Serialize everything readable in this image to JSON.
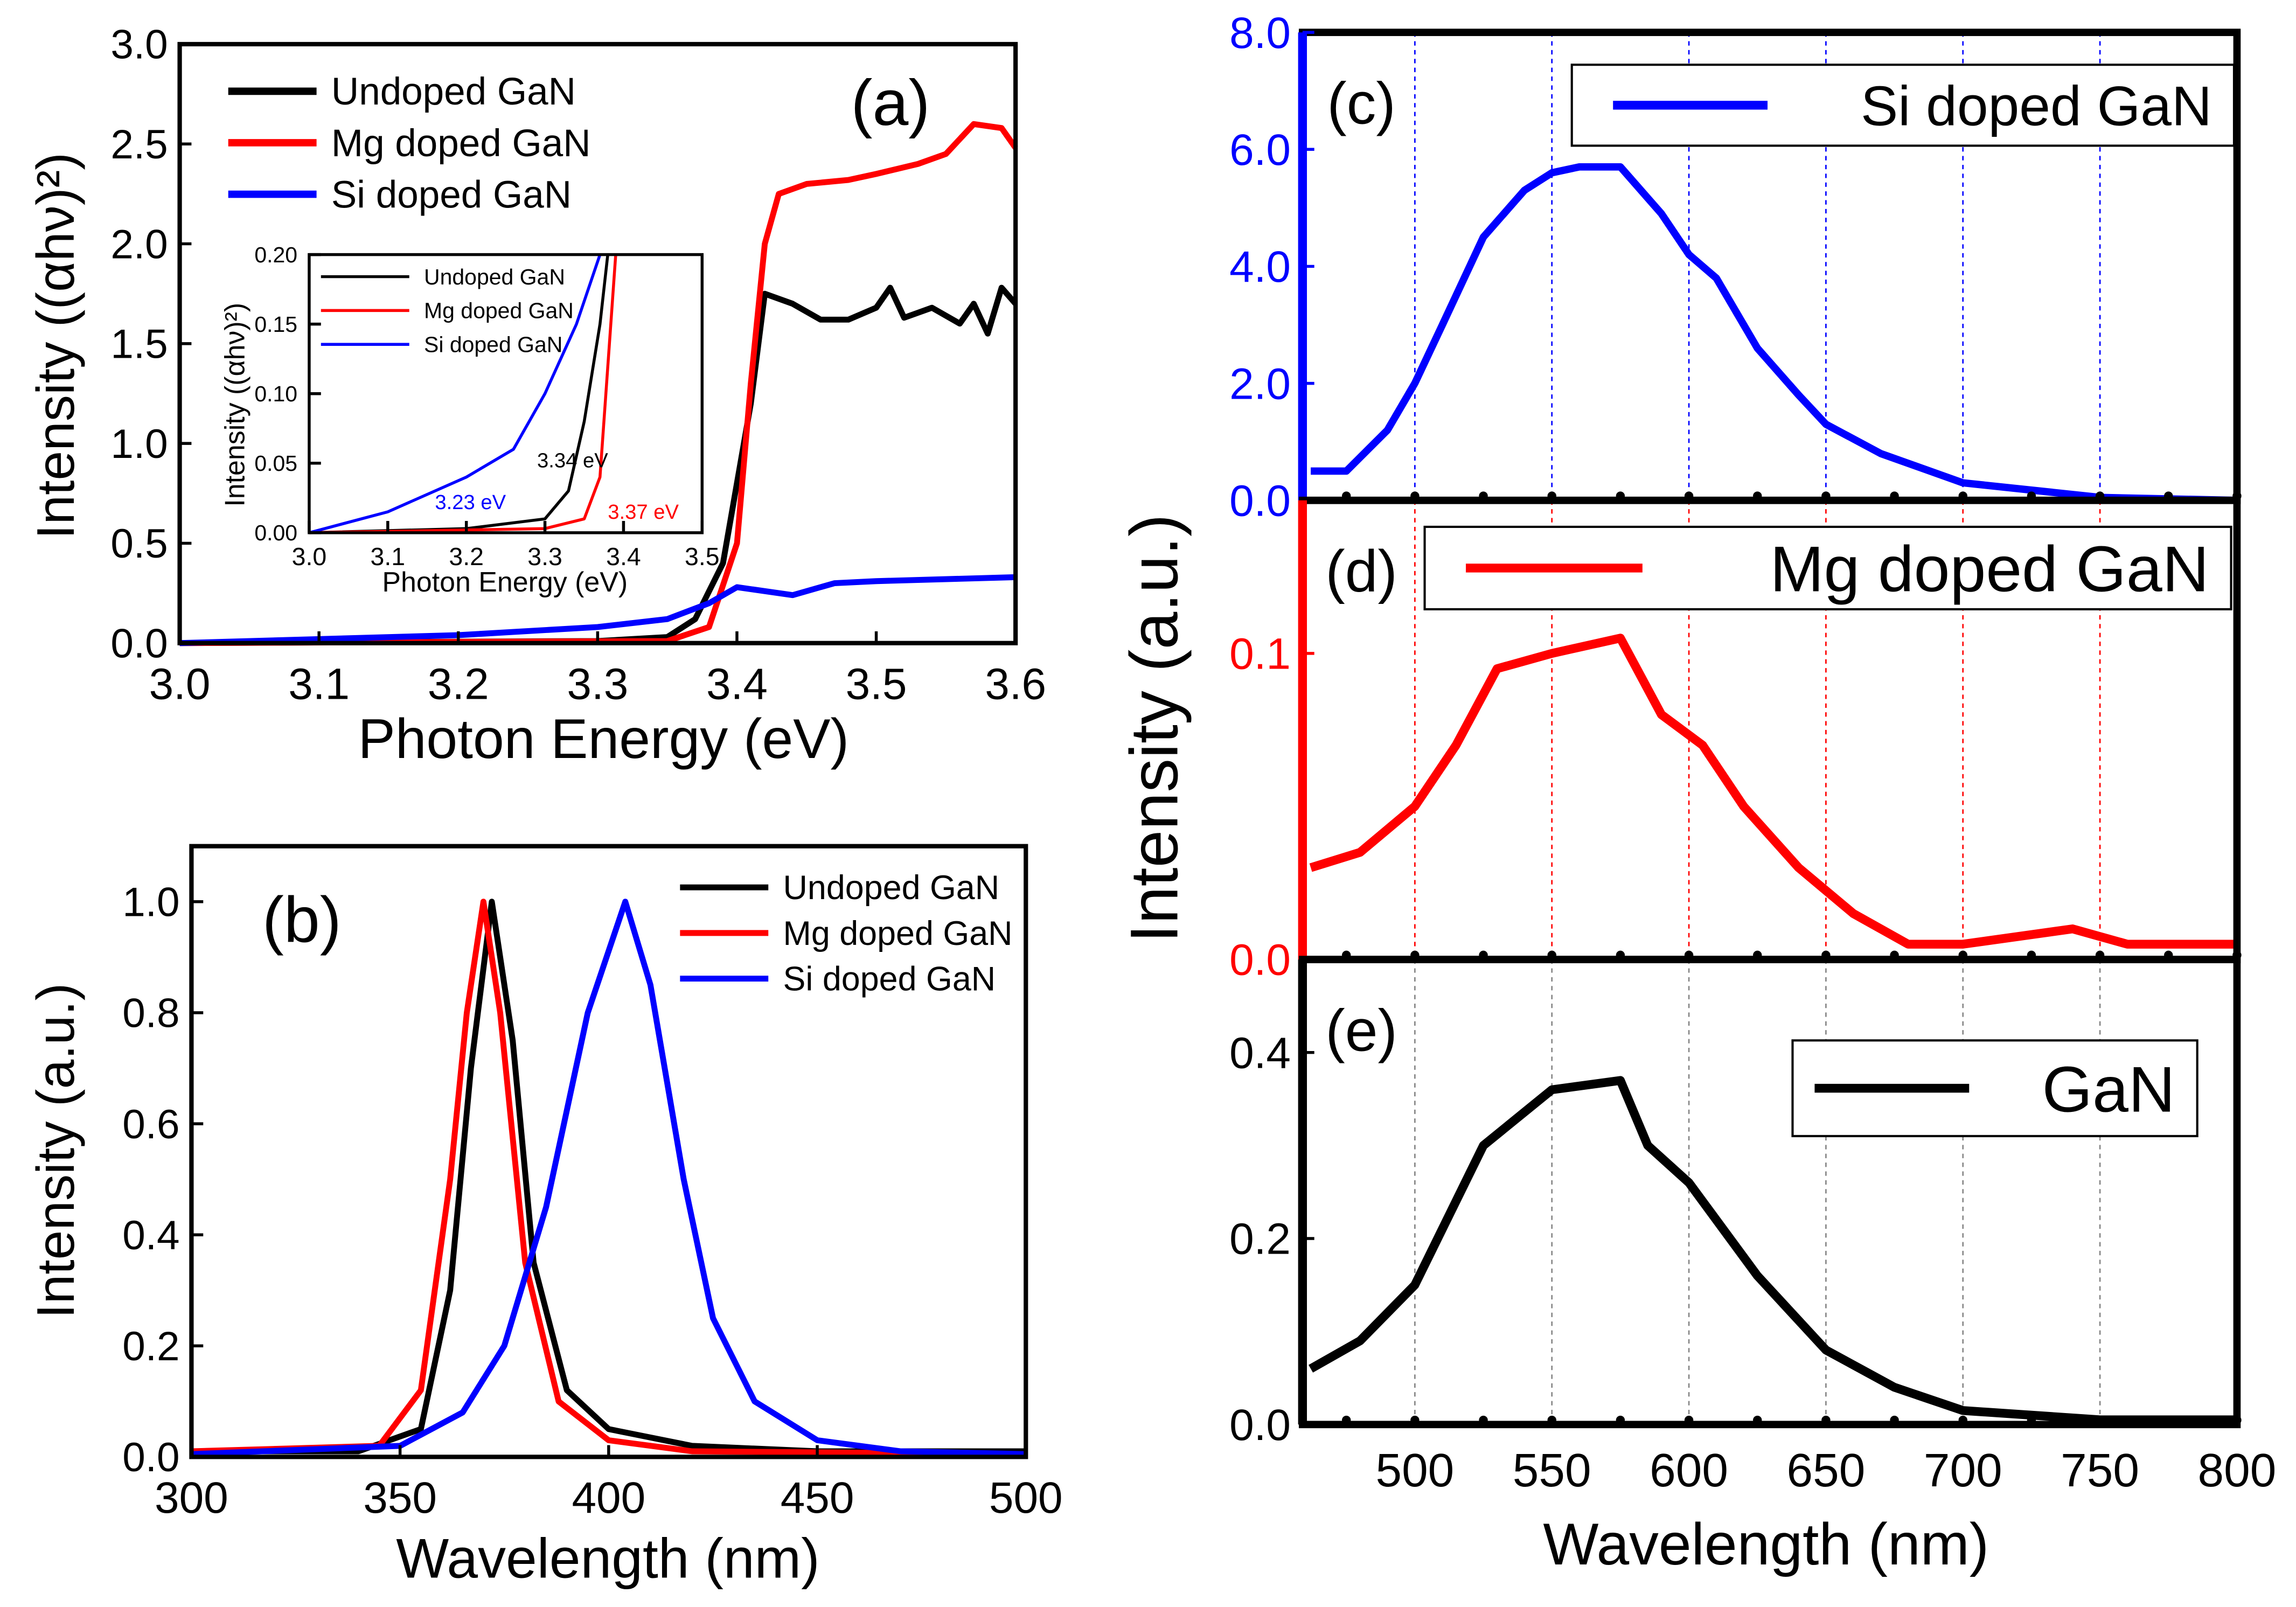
{
  "chart_data": [
    {
      "id": "a",
      "type": "line",
      "panel_label": "(a)",
      "xlabel": "Photon Energy (eV)",
      "ylabel": "Intensity ((αhν)²)",
      "xlim": [
        3.0,
        3.6
      ],
      "ylim": [
        0,
        3.0
      ],
      "xticks": [
        "3.0",
        "3.1",
        "3.2",
        "3.3",
        "3.4",
        "3.5",
        "3.6"
      ],
      "yticks": [
        "0.0",
        "0.5",
        "1.0",
        "1.5",
        "2.0",
        "2.5",
        "3.0"
      ],
      "legend": "top-left",
      "grid": false,
      "series": [
        {
          "name": "Undoped GaN",
          "color": "#000000",
          "points": [
            [
              3.0,
              0
            ],
            [
              3.3,
              0.01
            ],
            [
              3.35,
              0.03
            ],
            [
              3.37,
              0.12
            ],
            [
              3.39,
              0.4
            ],
            [
              3.41,
              1.2
            ],
            [
              3.42,
              1.75
            ],
            [
              3.44,
              1.7
            ],
            [
              3.46,
              1.62
            ],
            [
              3.48,
              1.62
            ],
            [
              3.5,
              1.68
            ],
            [
              3.51,
              1.78
            ],
            [
              3.52,
              1.63
            ],
            [
              3.54,
              1.68
            ],
            [
              3.56,
              1.6
            ],
            [
              3.57,
              1.7
            ],
            [
              3.58,
              1.55
            ],
            [
              3.59,
              1.78
            ],
            [
              3.6,
              1.7
            ]
          ]
        },
        {
          "name": "Mg doped GaN",
          "color": "#ff0000",
          "points": [
            [
              3.0,
              0
            ],
            [
              3.35,
              0.01
            ],
            [
              3.38,
              0.08
            ],
            [
              3.4,
              0.5
            ],
            [
              3.41,
              1.3
            ],
            [
              3.42,
              2.0
            ],
            [
              3.43,
              2.25
            ],
            [
              3.45,
              2.3
            ],
            [
              3.48,
              2.32
            ],
            [
              3.5,
              2.35
            ],
            [
              3.53,
              2.4
            ],
            [
              3.55,
              2.45
            ],
            [
              3.57,
              2.6
            ],
            [
              3.59,
              2.58
            ],
            [
              3.6,
              2.48
            ]
          ]
        },
        {
          "name": "Si doped GaN",
          "color": "#0000ff",
          "points": [
            [
              3.0,
              0
            ],
            [
              3.1,
              0.02
            ],
            [
              3.2,
              0.04
            ],
            [
              3.3,
              0.08
            ],
            [
              3.35,
              0.12
            ],
            [
              3.38,
              0.2
            ],
            [
              3.4,
              0.28
            ],
            [
              3.42,
              0.26
            ],
            [
              3.44,
              0.24
            ],
            [
              3.47,
              0.3
            ],
            [
              3.5,
              0.31
            ],
            [
              3.6,
              0.33
            ]
          ]
        }
      ],
      "inset": {
        "xlabel": "Photon Energy (eV)",
        "ylabel": "Intensity ((αhν)²)",
        "xlim": [
          3.0,
          3.5
        ],
        "ylim": [
          0,
          0.2
        ],
        "xticks": [
          "3.0",
          "3.1",
          "3.2",
          "3.3",
          "3.4",
          "3.5"
        ],
        "yticks": [
          "0.00",
          "0.05",
          "0.10",
          "0.15",
          "0.20"
        ],
        "series": [
          {
            "name": "Undoped GaN",
            "color": "#000000",
            "points": [
              [
                3.0,
                0
              ],
              [
                3.2,
                0.003
              ],
              [
                3.3,
                0.01
              ],
              [
                3.33,
                0.03
              ],
              [
                3.35,
                0.08
              ],
              [
                3.37,
                0.15
              ],
              [
                3.38,
                0.2
              ]
            ]
          },
          {
            "name": "Mg doped GaN",
            "color": "#ff0000",
            "points": [
              [
                3.0,
                0
              ],
              [
                3.3,
                0.003
              ],
              [
                3.35,
                0.01
              ],
              [
                3.37,
                0.04
              ],
              [
                3.39,
                0.2
              ]
            ]
          },
          {
            "name": "Si doped GaN",
            "color": "#0000ff",
            "points": [
              [
                3.0,
                0
              ],
              [
                3.1,
                0.015
              ],
              [
                3.2,
                0.04
              ],
              [
                3.26,
                0.06
              ],
              [
                3.3,
                0.1
              ],
              [
                3.34,
                0.15
              ],
              [
                3.37,
                0.2
              ]
            ]
          }
        ],
        "annotations": [
          {
            "text": "3.23 eV",
            "color": "#0000ff",
            "at": [
              3.16,
              0.017
            ]
          },
          {
            "text": "3.34 eV",
            "color": "#000000",
            "at": [
              3.29,
              0.047
            ]
          },
          {
            "text": "3.37 eV",
            "color": "#ff0000",
            "at": [
              3.38,
              0.01
            ]
          }
        ]
      }
    },
    {
      "id": "b",
      "type": "line",
      "panel_label": "(b)",
      "xlabel": "Wavelength (nm)",
      "ylabel": "Intensity (a.u.)",
      "xlim": [
        300,
        500
      ],
      "ylim": [
        0,
        1.1
      ],
      "xticks": [
        "300",
        "350",
        "400",
        "450",
        "500"
      ],
      "yticks": [
        "0.0",
        "0.2",
        "0.4",
        "0.6",
        "0.8",
        "1.0"
      ],
      "legend": "top-right",
      "grid": false,
      "series": [
        {
          "name": "Undoped GaN",
          "color": "#000000",
          "points": [
            [
              300,
              0.01
            ],
            [
              340,
              0.01
            ],
            [
              355,
              0.05
            ],
            [
              362,
              0.3
            ],
            [
              367,
              0.7
            ],
            [
              372,
              1.0
            ],
            [
              377,
              0.75
            ],
            [
              382,
              0.35
            ],
            [
              390,
              0.12
            ],
            [
              400,
              0.05
            ],
            [
              420,
              0.02
            ],
            [
              450,
              0.01
            ],
            [
              500,
              0.01
            ]
          ]
        },
        {
          "name": "Mg doped GaN",
          "color": "#ff0000",
          "points": [
            [
              300,
              0.01
            ],
            [
              345,
              0.02
            ],
            [
              355,
              0.12
            ],
            [
              362,
              0.5
            ],
            [
              366,
              0.8
            ],
            [
              370,
              1.0
            ],
            [
              374,
              0.8
            ],
            [
              380,
              0.35
            ],
            [
              388,
              0.1
            ],
            [
              400,
              0.03
            ],
            [
              420,
              0.01
            ],
            [
              500,
              0.005
            ]
          ]
        },
        {
          "name": "Si doped GaN",
          "color": "#0000ff",
          "points": [
            [
              300,
              0.005
            ],
            [
              350,
              0.02
            ],
            [
              365,
              0.08
            ],
            [
              375,
              0.2
            ],
            [
              385,
              0.45
            ],
            [
              395,
              0.8
            ],
            [
              404,
              1.0
            ],
            [
              410,
              0.85
            ],
            [
              418,
              0.5
            ],
            [
              425,
              0.25
            ],
            [
              435,
              0.1
            ],
            [
              450,
              0.03
            ],
            [
              470,
              0.01
            ],
            [
              500,
              0.005
            ]
          ]
        }
      ]
    },
    {
      "id": "c",
      "type": "line",
      "panel_label": "(c)",
      "xlim": [
        459,
        800
      ],
      "ylim": [
        0,
        8.0
      ],
      "axis_color": "#0000ff",
      "yticks": [
        "0.0",
        "2.0",
        "4.0",
        "6.0",
        "8.0"
      ],
      "grid": "vertical dotted",
      "series": [
        {
          "name": "Si doped GaN",
          "color": "#0000ff",
          "points": [
            [
              462,
              0.5
            ],
            [
              475,
              0.5
            ],
            [
              490,
              1.2
            ],
            [
              500,
              2.0
            ],
            [
              510,
              3.0
            ],
            [
              525,
              4.5
            ],
            [
              540,
              5.3
            ],
            [
              550,
              5.6
            ],
            [
              560,
              5.7
            ],
            [
              575,
              5.7
            ],
            [
              590,
              4.9
            ],
            [
              600,
              4.2
            ],
            [
              610,
              3.8
            ],
            [
              625,
              2.6
            ],
            [
              640,
              1.8
            ],
            [
              650,
              1.3
            ],
            [
              670,
              0.8
            ],
            [
              700,
              0.3
            ],
            [
              750,
              0.05
            ],
            [
              800,
              0.0
            ]
          ]
        }
      ]
    },
    {
      "id": "d",
      "type": "line",
      "panel_label": "(d)",
      "xlim": [
        459,
        800
      ],
      "ylim": [
        0,
        0.15
      ],
      "axis_color": "#ff0000",
      "yticks": [
        "0.0",
        "0.1"
      ],
      "grid": "vertical dotted",
      "series": [
        {
          "name": "Mg doped GaN",
          "color": "#ff0000",
          "points": [
            [
              462,
              0.03
            ],
            [
              480,
              0.035
            ],
            [
              500,
              0.05
            ],
            [
              515,
              0.07
            ],
            [
              530,
              0.095
            ],
            [
              550,
              0.1
            ],
            [
              575,
              0.105
            ],
            [
              590,
              0.08
            ],
            [
              605,
              0.07
            ],
            [
              620,
              0.05
            ],
            [
              640,
              0.03
            ],
            [
              660,
              0.015
            ],
            [
              680,
              0.005
            ],
            [
              700,
              0.005
            ],
            [
              740,
              0.01
            ],
            [
              760,
              0.005
            ],
            [
              800,
              0.005
            ]
          ]
        }
      ]
    },
    {
      "id": "e",
      "type": "line",
      "panel_label": "(e)",
      "xlim": [
        459,
        800
      ],
      "ylim": [
        0,
        0.5
      ],
      "axis_color": "#000000",
      "yticks": [
        "0.0",
        "0.2",
        "0.4"
      ],
      "grid": "vertical dotted",
      "xticks": [
        "500",
        "550",
        "600",
        "650",
        "700",
        "750",
        "800"
      ],
      "series": [
        {
          "name": "GaN",
          "color": "#000000",
          "points": [
            [
              462,
              0.06
            ],
            [
              480,
              0.09
            ],
            [
              500,
              0.15
            ],
            [
              525,
              0.3
            ],
            [
              550,
              0.36
            ],
            [
              575,
              0.37
            ],
            [
              585,
              0.3
            ],
            [
              600,
              0.26
            ],
            [
              625,
              0.16
            ],
            [
              650,
              0.08
            ],
            [
              675,
              0.04
            ],
            [
              700,
              0.015
            ],
            [
              750,
              0.005
            ],
            [
              800,
              0.005
            ]
          ]
        }
      ]
    }
  ],
  "shared": {
    "right_ylabel": "Intensity (a.u.)",
    "right_xlabel": "Wavelength (nm)"
  }
}
